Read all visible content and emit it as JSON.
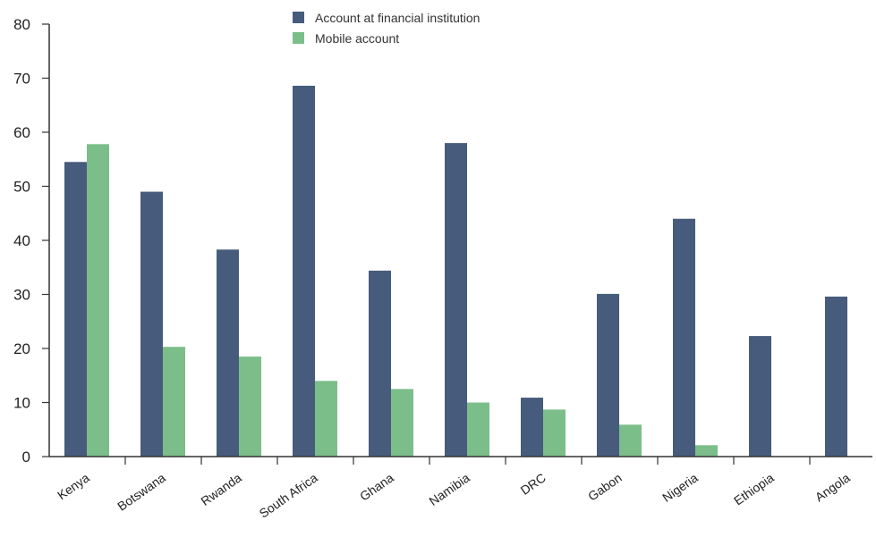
{
  "chart_data": {
    "type": "bar",
    "title": "",
    "xlabel": "",
    "ylabel": "",
    "ylim": [
      0,
      80
    ],
    "yticks": [
      0,
      10,
      20,
      30,
      40,
      50,
      60,
      70,
      80
    ],
    "grid": false,
    "legend_position": "top-center",
    "categories": [
      "Kenya",
      "Botswana",
      "Rwanda",
      "South Africa",
      "Ghana",
      "Namibia",
      "DRC",
      "Gabon",
      "Nigeria",
      "Ethiopia",
      "Angola"
    ],
    "series": [
      {
        "name": "Account at financial institution",
        "color": "#475c7c",
        "values": [
          54.5,
          49,
          38.3,
          68.6,
          34.4,
          58,
          10.9,
          30.1,
          44,
          22.3,
          29.6
        ]
      },
      {
        "name": "Mobile account",
        "color": "#7bbe8a",
        "values": [
          57.8,
          20.3,
          18.5,
          14,
          12.5,
          10,
          8.7,
          5.9,
          2.1,
          null,
          null
        ]
      }
    ]
  }
}
